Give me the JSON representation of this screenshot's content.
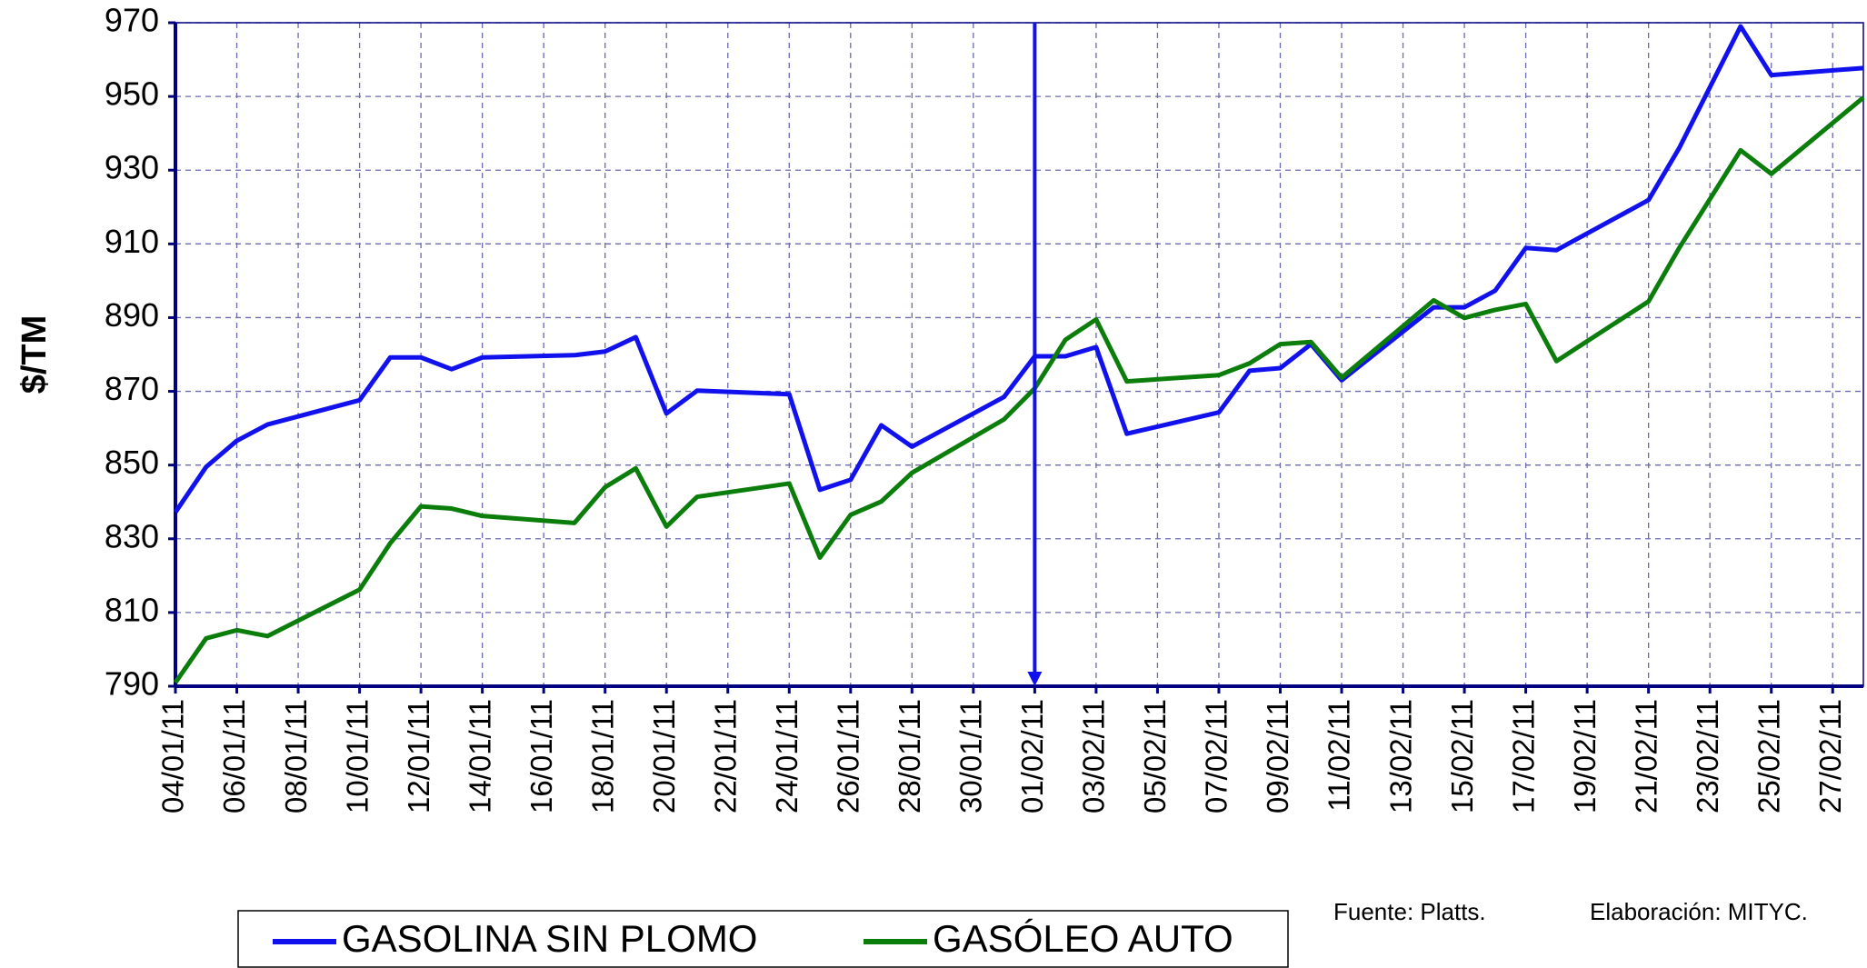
{
  "chart_data": {
    "type": "line",
    "y_label": "$/TM",
    "x": [
      "04/01/11",
      "05/01/11",
      "06/01/11",
      "07/01/11",
      "10/01/11",
      "11/01/11",
      "12/01/11",
      "13/01/11",
      "14/01/11",
      "17/01/11",
      "18/01/11",
      "19/01/11",
      "20/01/11",
      "21/01/11",
      "24/01/11",
      "25/01/11",
      "26/01/11",
      "27/01/11",
      "28/01/11",
      "31/01/11",
      "01/02/11",
      "02/02/11",
      "03/02/11",
      "04/02/11",
      "07/02/11",
      "08/02/11",
      "09/02/11",
      "10/02/11",
      "11/02/11",
      "14/02/11",
      "15/02/11",
      "16/02/11",
      "17/02/11",
      "18/02/11",
      "21/02/11",
      "22/02/11",
      "24/02/11",
      "25/02/11",
      "28/02/11"
    ],
    "series": [
      {
        "name": "GASOLINA SIN PLOMO",
        "color": "#1111ee",
        "values": [
          837.2,
          849.5,
          856.6,
          861,
          867.6,
          879.2,
          879.2,
          876,
          879.2,
          879.8,
          880.8,
          884.7,
          864,
          870.2,
          869.2,
          843.3,
          846,
          860.8,
          855,
          868.5,
          879.5,
          879.5,
          882,
          858.5,
          864.3,
          875.6,
          876.3,
          882.8,
          873,
          892.8,
          892.8,
          897.3,
          908.9,
          908.3,
          921.9,
          936,
          969,
          955.8,
          957.7
        ]
      },
      {
        "name": "GASÓLEO AUTO",
        "color": "#0b7d0b",
        "values": [
          791,
          803,
          805.2,
          803.6,
          816.2,
          828.8,
          838.8,
          838.2,
          836.2,
          834.3,
          844,
          849.1,
          833.3,
          841.4,
          845,
          824.9,
          836.5,
          840.1,
          847.9,
          862.4,
          870.8,
          884,
          889.5,
          872.7,
          874.4,
          877.6,
          882.8,
          883.4,
          873.7,
          894.7,
          889.9,
          892.1,
          893.7,
          878.2,
          894.4,
          908.9,
          935.4,
          929,
          949.7
        ]
      }
    ],
    "xlim": [
      "04/01/11",
      "28/02/11"
    ],
    "xticks": [
      "04/01/11",
      "06/01/11",
      "08/01/11",
      "10/01/11",
      "12/01/11",
      "14/01/11",
      "16/01/11",
      "18/01/11",
      "20/01/11",
      "22/01/11",
      "24/01/11",
      "26/01/11",
      "28/01/11",
      "30/01/11",
      "01/02/11",
      "03/02/11",
      "05/02/11",
      "07/02/11",
      "09/02/11",
      "11/02/11",
      "13/02/11",
      "15/02/11",
      "17/02/11",
      "19/02/11",
      "21/02/11",
      "23/02/11",
      "25/02/11",
      "27/02/11"
    ],
    "ylim": [
      790,
      970
    ],
    "yticks": [
      790,
      810,
      830,
      850,
      870,
      890,
      910,
      930,
      950,
      970
    ],
    "grid": true,
    "marker_line_x": "01/02/11",
    "source": "Fuente: Platts.",
    "credit": "Elaboración: MITYC."
  }
}
